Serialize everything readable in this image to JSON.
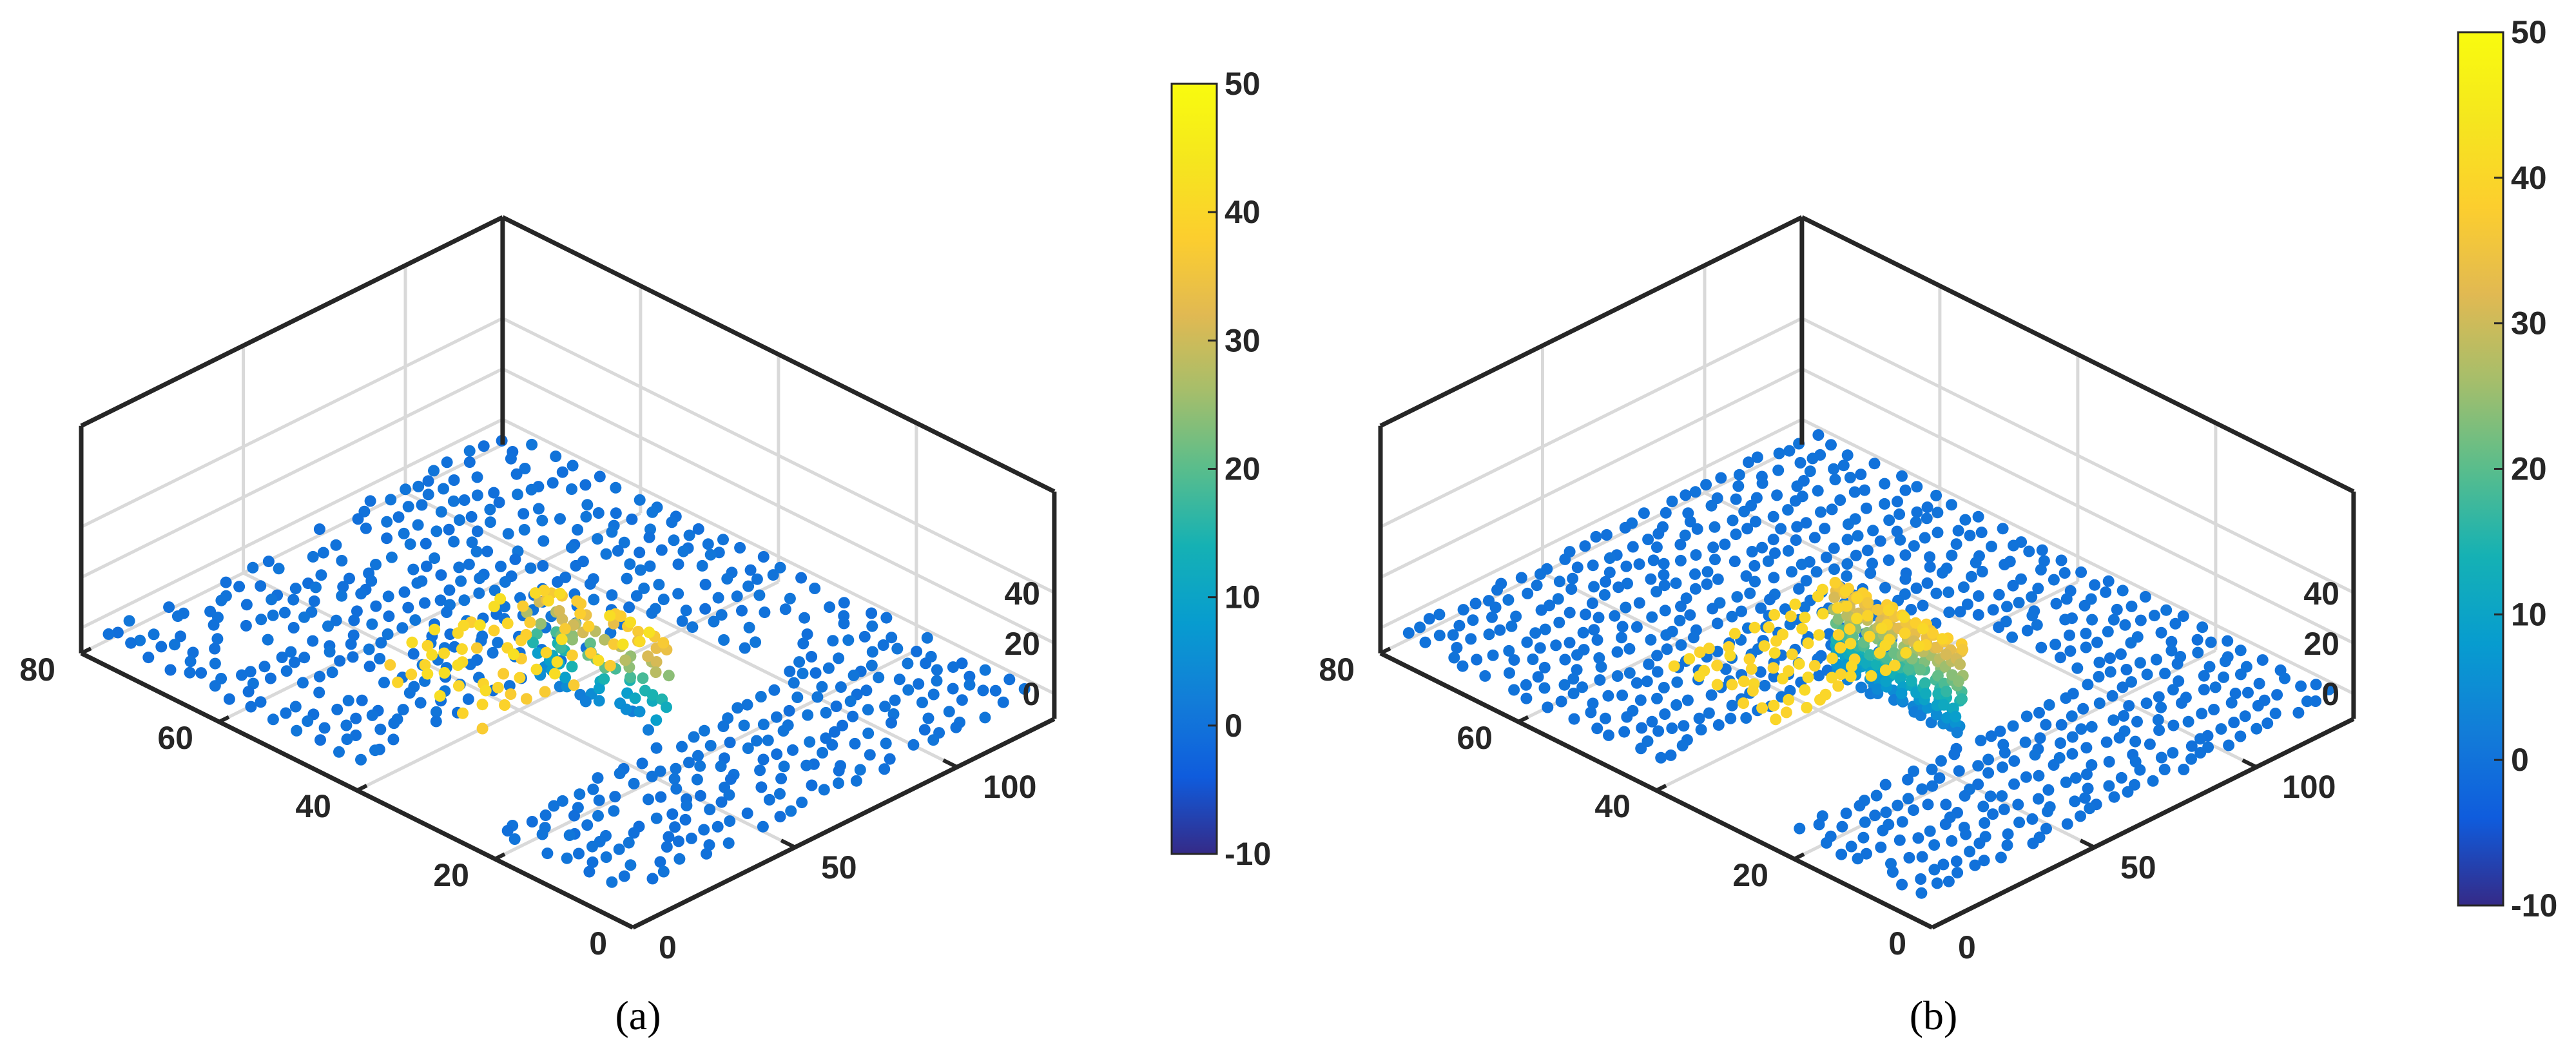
{
  "chart_data": [
    {
      "type": "scatter",
      "subtype": "3d-point-cloud",
      "caption": "(a)",
      "x_ticks": [
        "0",
        "20",
        "40",
        "60",
        "80"
      ],
      "y_ticks": [
        "0",
        "50",
        "100"
      ],
      "z_ticks": [
        "0",
        "20",
        "40"
      ],
      "xlim": [
        0,
        80
      ],
      "ylim": [
        0,
        130
      ],
      "zlim": [
        -10,
        50
      ],
      "grid": true,
      "colorbar": {
        "ticks": [
          "50",
          "40",
          "30",
          "20",
          "10",
          "0",
          "-10"
        ],
        "range": [
          -10,
          50
        ],
        "colormap": "parula"
      },
      "surface": {
        "description_values": {
          "base_plane_z": 0,
          "plane_x_range": [
            0,
            80
          ],
          "plane_y_range": [
            0,
            130
          ],
          "hole_x_range": [
            22,
            40
          ],
          "hole_y_range": [
            55,
            95
          ],
          "step_height_z": 40,
          "step_x_range": [
            22,
            40
          ],
          "step_y_range": [
            0,
            55
          ]
        },
        "noise": "high"
      }
    },
    {
      "type": "scatter",
      "subtype": "3d-point-cloud",
      "caption": "(b)",
      "x_ticks": [
        "0",
        "20",
        "40",
        "60",
        "80"
      ],
      "y_ticks": [
        "0",
        "50",
        "100"
      ],
      "z_ticks": [
        "0",
        "20",
        "40"
      ],
      "xlim": [
        0,
        80
      ],
      "ylim": [
        0,
        130
      ],
      "zlim": [
        -10,
        50
      ],
      "grid": true,
      "colorbar": {
        "ticks": [
          "50",
          "40",
          "30",
          "20",
          "10",
          "0",
          "-10"
        ],
        "range": [
          -10,
          50
        ],
        "colormap": "parula"
      },
      "surface": {
        "description_values": {
          "base_plane_z": 0,
          "plane_x_range": [
            0,
            80
          ],
          "plane_y_range": [
            0,
            130
          ],
          "hole_x_range": [
            22,
            40
          ],
          "hole_y_range": [
            55,
            95
          ],
          "step_height_z": 40,
          "step_x_range": [
            22,
            40
          ],
          "step_y_range": [
            0,
            55
          ]
        },
        "noise": "low"
      }
    }
  ]
}
